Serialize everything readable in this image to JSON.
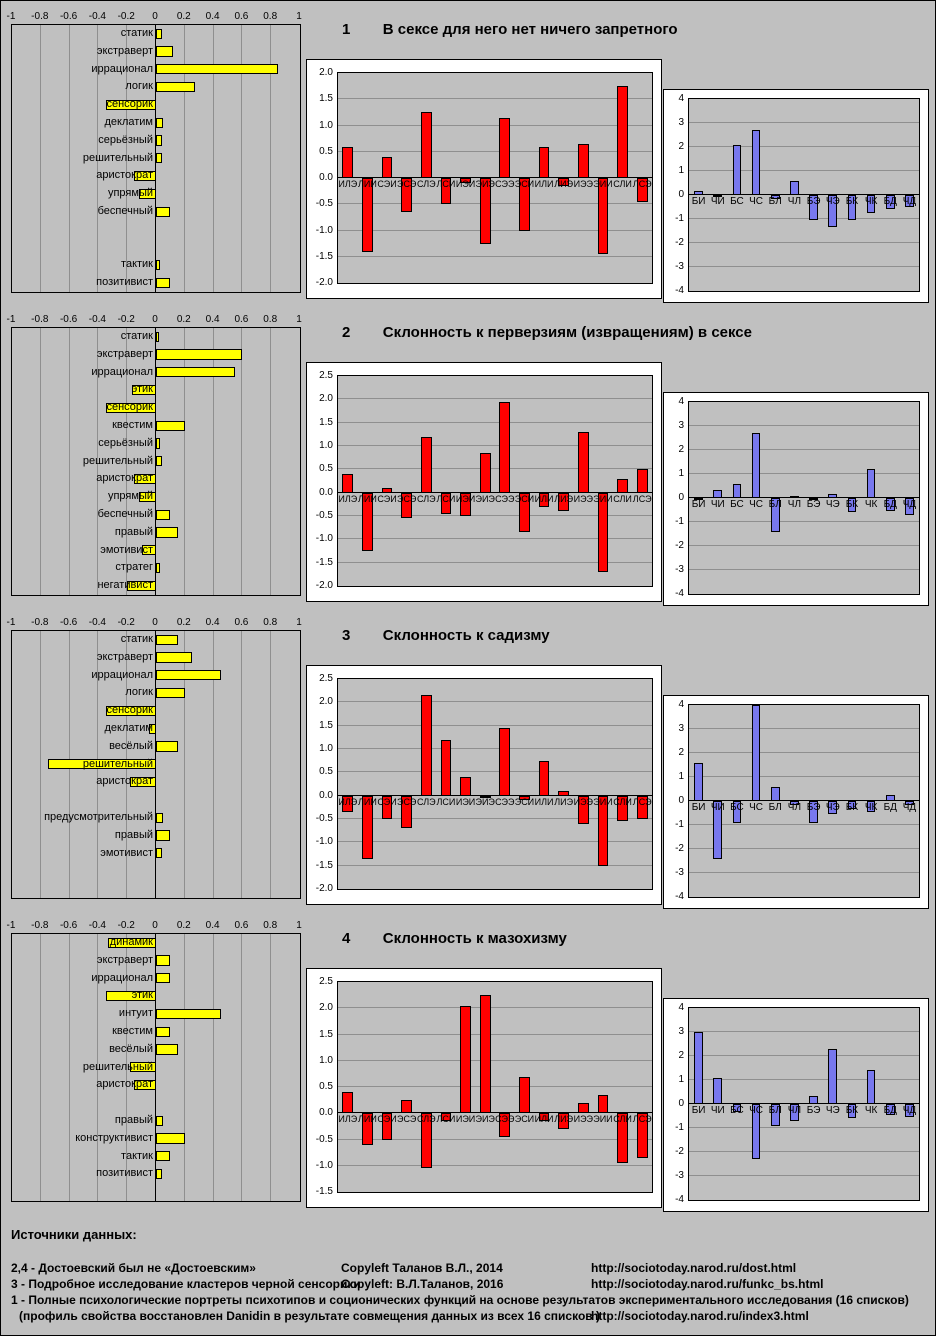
{
  "colors": {
    "page_bg": "#c0c0c0",
    "panel_bg": "#ffffff",
    "plot_bg": "#c0c0c0",
    "grid": "#8f8f8f",
    "axis": "#000000",
    "trait_bar": "#ffff00",
    "type_bar": "#ff0000",
    "function_bar": "#7878ee"
  },
  "chart_data": [
    {
      "num": "1",
      "title": "В сексе для него нет ничего запретного",
      "traits": {
        "type": "bar",
        "orientation": "horizontal",
        "xlim": [
          -1,
          1
        ],
        "xtick_step": 0.2,
        "categories": [
          "статик",
          "экстраверт",
          "иррационал",
          "логик",
          "сенсорик",
          "деклатим",
          "серьёзный",
          "решительный",
          "аристократ",
          "упрямый",
          "беспечный",
          "",
          "",
          "тактик",
          "позитивист"
        ],
        "values": [
          0.04,
          0.12,
          0.85,
          0.27,
          -0.35,
          0.05,
          0.04,
          0.04,
          -0.15,
          -0.12,
          0.1,
          null,
          null,
          0.03,
          0.1
        ],
        "bar_color": "#ffff00"
      },
      "types": {
        "type": "bar",
        "ylim": [
          -2,
          2
        ],
        "ytick_step": 0.5,
        "categories": [
          "ИЛЭ",
          "ЛИИ",
          "СЭИ",
          "ЭСЭ",
          "СЛЭ",
          "ЛСИ",
          "ИЭИ",
          "ЭИЭ",
          "СЭЭ",
          "ЭСИ",
          "ИЛИ",
          "ЛИЭ",
          "ИЭЭ",
          "ЭИИ",
          "СЛИ",
          "ЛСЭ"
        ],
        "values": [
          0.6,
          -1.4,
          0.4,
          -0.65,
          1.25,
          -0.5,
          -0.1,
          -1.25,
          1.15,
          -1.0,
          0.6,
          -0.15,
          0.65,
          -1.45,
          1.75,
          -0.45
        ],
        "bar_color": "#ff0000"
      },
      "functions": {
        "type": "bar",
        "ylim": [
          -4,
          4
        ],
        "ytick_step": 1,
        "categories": [
          "БИ",
          "ЧИ",
          "БС",
          "ЧС",
          "БЛ",
          "ЧЛ",
          "БЭ",
          "ЧЭ",
          "БК",
          "ЧК",
          "БД",
          "ЧД"
        ],
        "values": [
          0.15,
          -0.1,
          2.1,
          2.7,
          -0.15,
          0.6,
          -1.05,
          -1.35,
          -1.05,
          -0.75,
          -0.6,
          -0.5
        ],
        "bar_color": "#7878ee"
      }
    },
    {
      "num": "2",
      "title": "Склонность к перверзиям (извращениям) в сексе",
      "traits": {
        "type": "bar",
        "orientation": "horizontal",
        "xlim": [
          -1,
          1
        ],
        "xtick_step": 0.2,
        "categories": [
          "статик",
          "экстраверт",
          "иррационал",
          "этик",
          "сенсорик",
          "квестим",
          "серьёзный",
          "решительный",
          "аристократ",
          "упрямый",
          "беспечный",
          "правый",
          "эмотивист",
          "стратег",
          "негативист"
        ],
        "values": [
          0.02,
          0.6,
          0.55,
          -0.17,
          -0.35,
          0.2,
          0.03,
          0.04,
          -0.15,
          -0.12,
          0.1,
          0.15,
          -0.1,
          0.03,
          -0.2
        ],
        "bar_color": "#ffff00"
      },
      "types": {
        "type": "bar",
        "ylim": [
          -2,
          2.5
        ],
        "ytick_step": 0.5,
        "categories": [
          "ИЛЭ",
          "ЛИИ",
          "СЭИ",
          "ЭСЭ",
          "СЛЭ",
          "ЛСИ",
          "ИЭИ",
          "ЭИЭ",
          "СЭЭ",
          "ЭСИ",
          "ИЛИ",
          "ЛИЭ",
          "ИЭЭ",
          "ЭИИ",
          "СЛИ",
          "ЛСЭ"
        ],
        "values": [
          0.4,
          -1.25,
          0.1,
          -0.55,
          1.2,
          -0.45,
          -0.5,
          0.85,
          1.95,
          -0.85,
          -0.3,
          -0.4,
          1.3,
          -1.7,
          0.3,
          0.5
        ],
        "bar_color": "#ff0000"
      },
      "functions": {
        "type": "bar",
        "ylim": [
          -4,
          4
        ],
        "ytick_step": 1,
        "categories": [
          "БИ",
          "ЧИ",
          "БС",
          "ЧС",
          "БЛ",
          "ЧЛ",
          "БЭ",
          "ЧЭ",
          "БК",
          "ЧК",
          "БД",
          "ЧД"
        ],
        "values": [
          -0.05,
          0.35,
          0.6,
          2.7,
          -1.4,
          0.1,
          -0.1,
          0.15,
          -0.6,
          1.2,
          -0.55,
          -0.7
        ],
        "bar_color": "#7878ee"
      }
    },
    {
      "num": "3",
      "title": "Склонность к садизму",
      "traits": {
        "type": "bar",
        "orientation": "horizontal",
        "xlim": [
          -1,
          1
        ],
        "xtick_step": 0.2,
        "categories": [
          "статик",
          "экстраверт",
          "иррационал",
          "логик",
          "сенсорик",
          "деклатим",
          "весёлый",
          "решительный",
          "аристократ",
          "",
          "предусмотрительный",
          "правый",
          "эмотивист",
          "",
          ""
        ],
        "values": [
          0.15,
          0.25,
          0.45,
          0.2,
          -0.35,
          -0.05,
          0.15,
          -0.75,
          -0.18,
          null,
          0.05,
          0.1,
          0.04,
          null,
          null
        ],
        "bar_color": "#ffff00"
      },
      "types": {
        "type": "bar",
        "ylim": [
          -2,
          2.5
        ],
        "ytick_step": 0.5,
        "categories": [
          "ИЛЭ",
          "ЛИИ",
          "СЭИ",
          "ЭСЭ",
          "СЛЭ",
          "ЛСИ",
          "ИЭИ",
          "ЭИЭ",
          "СЭЭ",
          "ЭСИ",
          "ИЛИ",
          "ЛИЭ",
          "ИЭЭ",
          "ЭИИ",
          "СЛИ",
          "ЛСЭ"
        ],
        "values": [
          -0.35,
          -1.35,
          -0.5,
          -0.7,
          2.15,
          1.2,
          0.4,
          -0.05,
          1.45,
          -0.1,
          0.75,
          0.1,
          -0.6,
          -1.5,
          -0.55,
          -0.5
        ],
        "bar_color": "#ff0000"
      },
      "functions": {
        "type": "bar",
        "ylim": [
          -4,
          4
        ],
        "ytick_step": 1,
        "categories": [
          "БИ",
          "ЧИ",
          "БС",
          "ЧС",
          "БЛ",
          "ЧЛ",
          "БЭ",
          "ЧЭ",
          "БК",
          "ЧК",
          "БД",
          "ЧД"
        ],
        "values": [
          1.6,
          -2.4,
          -0.9,
          4.0,
          0.6,
          -0.15,
          -0.9,
          -0.55,
          -0.35,
          -0.45,
          0.25,
          -0.15
        ],
        "bar_color": "#7878ee"
      }
    },
    {
      "num": "4",
      "title": "Склонность к мазохизму",
      "traits": {
        "type": "bar",
        "orientation": "horizontal",
        "xlim": [
          -1,
          1
        ],
        "xtick_step": 0.2,
        "categories": [
          "динамик",
          "экстраверт",
          "иррационал",
          "этик",
          "интуит",
          "квестим",
          "весёлый",
          "решительный",
          "аристократ",
          "",
          "правый",
          "конструктивист",
          "тактик",
          "позитивист",
          ""
        ],
        "values": [
          -0.33,
          0.1,
          0.1,
          -0.35,
          0.45,
          0.1,
          0.15,
          -0.18,
          -0.15,
          null,
          0.05,
          0.2,
          0.1,
          0.04,
          null
        ],
        "bar_color": "#ffff00"
      },
      "types": {
        "type": "bar",
        "ylim": [
          -1.5,
          2.5
        ],
        "ytick_step": 0.5,
        "categories": [
          "ИЛЭ",
          "ЛИИ",
          "СЭИ",
          "ЭСЭ",
          "СЛЭ",
          "ЛСИ",
          "ИЭИ",
          "ЭИЭ",
          "СЭЭ",
          "ЭСИ",
          "ИЛИ",
          "ЛИЭ",
          "ИЭЭ",
          "ЭИИ",
          "СЛИ",
          "ЛСЭ"
        ],
        "values": [
          0.4,
          -0.6,
          -0.5,
          0.25,
          -1.05,
          -0.15,
          2.05,
          2.25,
          -0.45,
          0.7,
          -0.15,
          -0.3,
          0.2,
          0.35,
          -0.95,
          -0.85
        ],
        "bar_color": "#ff0000"
      },
      "functions": {
        "type": "bar",
        "ylim": [
          -4,
          4
        ],
        "ytick_step": 1,
        "categories": [
          "БИ",
          "ЧИ",
          "БС",
          "ЧС",
          "БЛ",
          "ЧЛ",
          "БЭ",
          "ЧЭ",
          "БК",
          "ЧК",
          "БД",
          "ЧД"
        ],
        "values": [
          3.0,
          1.1,
          -0.35,
          -2.3,
          -0.9,
          -0.7,
          0.35,
          2.3,
          -0.6,
          1.4,
          -0.45,
          -0.55
        ],
        "bar_color": "#7878ee"
      }
    }
  ],
  "footer": {
    "heading": "Источники данных:",
    "lines": [
      {
        "a": "2,4 - Достоевский был не «Достоевским»",
        "b": "Copyleft  Таланов В.Л., 2014",
        "c": "http://sociotoday.narod.ru/dost.html"
      },
      {
        "a": "3 - Подробное исследование кластеров черной сенсорики",
        "b": "Copyleft:  В.Л.Таланов, 2016",
        "c": "http://sociotoday.narod.ru/funkc_bs.html"
      },
      {
        "a": "1 - Полные психологические портреты психотипов и соционических функций на основе результатов экспериментального исследования (16 списков)",
        "b": "",
        "c": ""
      },
      {
        "a": "(профиль свойства  восстановлен Danidin в результате совмещения данных из всех 16 списков )",
        "b": "",
        "c": "http://sociotoday.narod.ru/index3.html"
      }
    ]
  }
}
